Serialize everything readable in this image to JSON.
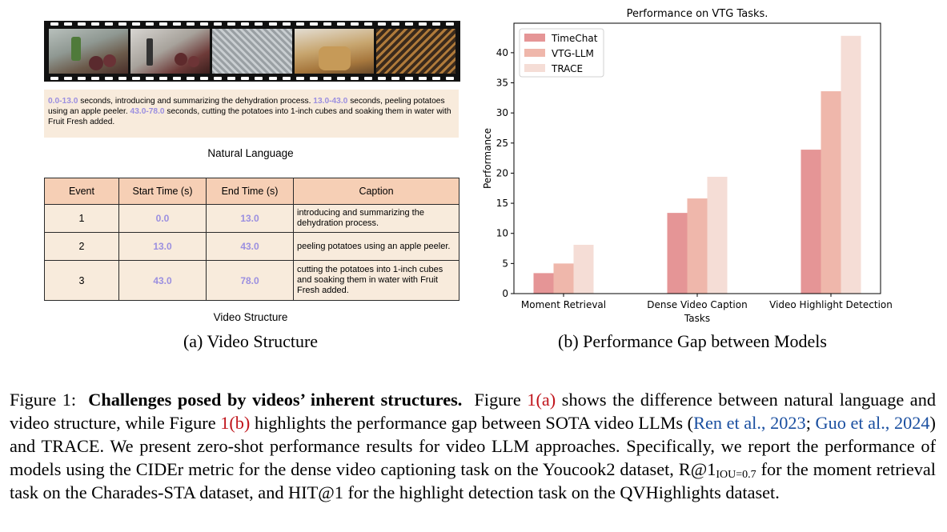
{
  "panel_a": {
    "natural_language": {
      "segments": [
        {
          "time": "0.0-13.0",
          "text": " seconds, introducing and summarizing the dehydration process. "
        },
        {
          "time": "13.0-43.0",
          "text": " seconds, peeling potatoes using an apple peeler. "
        },
        {
          "time": "43.0-78.0",
          "text": " seconds, cutting the potatoes into 1-inch cubes and soaking them in water with Fruit Fresh added."
        }
      ],
      "label": "Natural Language"
    },
    "table": {
      "headers": [
        "Event",
        "Start Time (s)",
        "End Time (s)",
        "Caption"
      ],
      "rows": [
        {
          "event": "1",
          "start": "0.0",
          "end": "13.0",
          "caption": "introducing and summarizing the dehydration process."
        },
        {
          "event": "2",
          "start": "13.0",
          "end": "43.0",
          "caption": "peeling potatoes using an apple peeler."
        },
        {
          "event": "3",
          "start": "43.0",
          "end": "78.0",
          "caption": "cutting the potatoes into 1-inch cubes and soaking them in water with Fruit Fresh added."
        }
      ],
      "label": "Video Structure"
    },
    "subcaption": "(a)  Video Structure"
  },
  "panel_b": {
    "subcaption": "(b)  Performance Gap between Models"
  },
  "chart_data": {
    "type": "bar",
    "title": "Performance on VTG Tasks.",
    "xlabel": "Tasks",
    "ylabel": "Performance",
    "categories": [
      "Moment Retrieval",
      "Dense Video Caption",
      "Video Highlight Detection"
    ],
    "series": [
      {
        "name": "TimeChat",
        "values": [
          3.4,
          13.4,
          23.9
        ],
        "color": "#e59596"
      },
      {
        "name": "VTG-LLM",
        "values": [
          5.0,
          15.8,
          33.6
        ],
        "color": "#efb7ab"
      },
      {
        "name": "TRACE",
        "values": [
          8.1,
          19.4,
          42.8
        ],
        "color": "#f5ddd6"
      }
    ],
    "ylim": [
      0,
      44.9
    ],
    "yticks": [
      0,
      5,
      10,
      15,
      20,
      25,
      30,
      35,
      40
    ],
    "legend": "top-left",
    "grid": false
  },
  "figure_caption": {
    "figure_label": "Figure 1:",
    "bold_title": "Challenges posed by videos’ inherent structures.",
    "t1": "Figure ",
    "ref_a": "1(a)",
    "t2": " shows the difference between natural language and video structure, while Figure ",
    "ref_b": "1(b)",
    "t3": " highlights the performance gap between SOTA video LLMs (",
    "cite1": "Ren et al., 2023",
    "t4": "; ",
    "cite2": "Guo et al., 2024",
    "t5": ") and TRACE. We present zero-shot performance results for video LLM approaches. Specifically, we report the performance of models using the CIDEr metric for the dense video captioning task on the Youcook2 dataset, R@1",
    "sub": "IOU=0.7",
    "t6": " for the moment retrieval task on the Charades-STA dataset, and HIT@1 for the highlight detection task on the QVHighlights dataset."
  }
}
